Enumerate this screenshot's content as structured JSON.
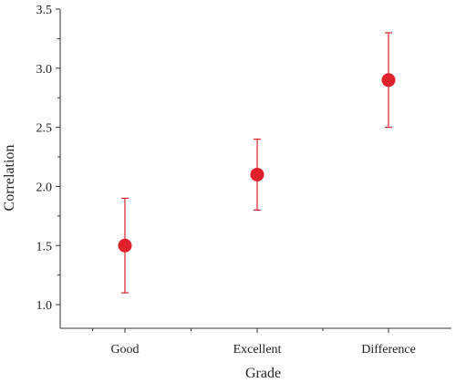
{
  "chart_data": {
    "type": "scatter",
    "title": "",
    "xlabel": "Grade",
    "ylabel": "Correlation",
    "categories": [
      "Good",
      "Excellent",
      "Difference"
    ],
    "series": [
      {
        "values": [
          1.5,
          2.1,
          2.9
        ],
        "error_low": [
          1.1,
          1.8,
          2.5
        ],
        "error_high": [
          1.9,
          2.4,
          3.3
        ],
        "color": "#e0202b"
      }
    ],
    "ylim": [
      0.8,
      3.5
    ],
    "yticks": [
      "1.0",
      "1.5",
      "2.0",
      "2.5",
      "3.0",
      "3.5"
    ],
    "grid": false,
    "legend": "none"
  }
}
